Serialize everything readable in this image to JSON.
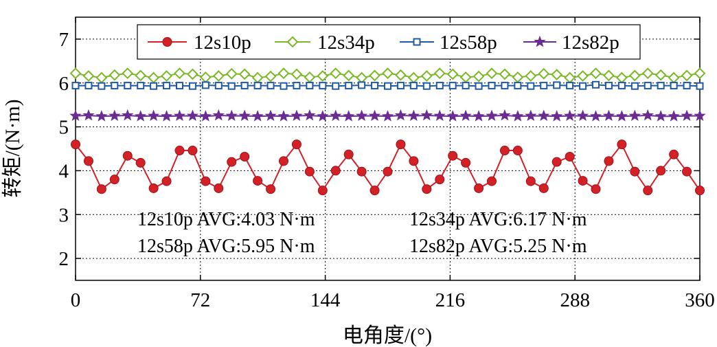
{
  "chart_data": {
    "type": "line",
    "title": "",
    "xlabel": "电角度/(°)",
    "ylabel": "转矩/(N·m)",
    "xlim": [
      0,
      360
    ],
    "ylim": [
      1.5,
      7.5
    ],
    "xticks": [
      0,
      72,
      144,
      216,
      288,
      360
    ],
    "yticks": [
      2,
      3,
      4,
      5,
      6,
      7
    ],
    "grid": true,
    "legend_position": "top",
    "x": [
      0,
      7.5,
      15,
      22.5,
      30,
      37.5,
      45,
      52.5,
      60,
      67.5,
      75,
      82.5,
      90,
      97.5,
      105,
      112.5,
      120,
      127.5,
      135,
      142.5,
      150,
      157.5,
      165,
      172.5,
      180,
      187.5,
      195,
      202.5,
      210,
      217.5,
      225,
      232.5,
      240,
      247.5,
      255,
      262.5,
      270,
      277.5,
      285,
      292.5,
      300,
      307.5,
      315,
      322.5,
      330,
      337.5,
      345,
      352.5,
      360
    ],
    "series": [
      {
        "name": "12s10p",
        "color": "#d42027",
        "marker": "circle",
        "values": [
          4.6,
          4.22,
          3.58,
          3.8,
          4.34,
          4.18,
          3.6,
          3.76,
          4.46,
          4.46,
          3.76,
          3.6,
          4.2,
          4.32,
          3.77,
          3.58,
          4.22,
          4.6,
          3.98,
          3.55,
          4.0,
          4.37,
          3.98,
          3.55,
          3.98,
          4.6,
          4.22,
          3.58,
          3.8,
          4.34,
          4.18,
          3.6,
          3.76,
          4.46,
          4.46,
          3.76,
          3.6,
          4.2,
          4.32,
          3.77,
          3.58,
          4.22,
          4.6,
          3.98,
          3.55,
          4.0,
          4.37,
          3.98,
          3.55
        ]
      },
      {
        "name": "12s34p",
        "color": "#7ab826",
        "marker": "diamond",
        "values": [
          6.22,
          6.16,
          6.12,
          6.18,
          6.22,
          6.17,
          6.12,
          6.16,
          6.22,
          6.2,
          6.13,
          6.16,
          6.21,
          6.2,
          6.12,
          6.15,
          6.22,
          6.2,
          6.13,
          6.16,
          6.22,
          6.17,
          6.12,
          6.17,
          6.22,
          6.18,
          6.12,
          6.16,
          6.22,
          6.2,
          6.13,
          6.15,
          6.22,
          6.2,
          6.13,
          6.16,
          6.21,
          6.19,
          6.12,
          6.16,
          6.22,
          6.17,
          6.12,
          6.17,
          6.22,
          6.18,
          6.12,
          6.17,
          6.22
        ]
      },
      {
        "name": "12s58p",
        "color": "#1f5aa6",
        "marker": "square",
        "values": [
          5.94,
          5.94,
          5.93,
          5.94,
          5.94,
          5.94,
          5.93,
          5.94,
          5.94,
          5.93,
          5.95,
          5.94,
          5.93,
          5.94,
          5.94,
          5.94,
          5.93,
          5.94,
          5.94,
          5.94,
          5.93,
          5.94,
          5.95,
          5.94,
          5.93,
          5.94,
          5.94,
          5.93,
          5.94,
          5.94,
          5.94,
          5.93,
          5.94,
          5.94,
          5.94,
          5.93,
          5.94,
          5.95,
          5.94,
          5.93,
          5.96,
          5.94,
          5.94,
          5.93,
          5.94,
          5.94,
          5.94,
          5.94,
          5.93
        ]
      },
      {
        "name": "12s82p",
        "color": "#6b2c91",
        "marker": "star",
        "values": [
          5.25,
          5.26,
          5.24,
          5.25,
          5.26,
          5.24,
          5.25,
          5.24,
          5.25,
          5.25,
          5.24,
          5.26,
          5.25,
          5.25,
          5.24,
          5.25,
          5.24,
          5.25,
          5.26,
          5.24,
          5.25,
          5.24,
          5.25,
          5.25,
          5.24,
          5.26,
          5.25,
          5.26,
          5.25,
          5.24,
          5.25,
          5.24,
          5.25,
          5.26,
          5.24,
          5.25,
          5.25,
          5.24,
          5.25,
          5.25,
          5.24,
          5.25,
          5.24,
          5.25,
          5.26,
          5.24,
          5.24,
          5.25,
          5.25
        ]
      }
    ],
    "annotations": [
      "12s10p AVG:4.03 N·m",
      "12s34p AVG:6.17 N·m",
      "12s58p AVG:5.95 N·m",
      "12s82p AVG:5.25 N·m"
    ]
  }
}
